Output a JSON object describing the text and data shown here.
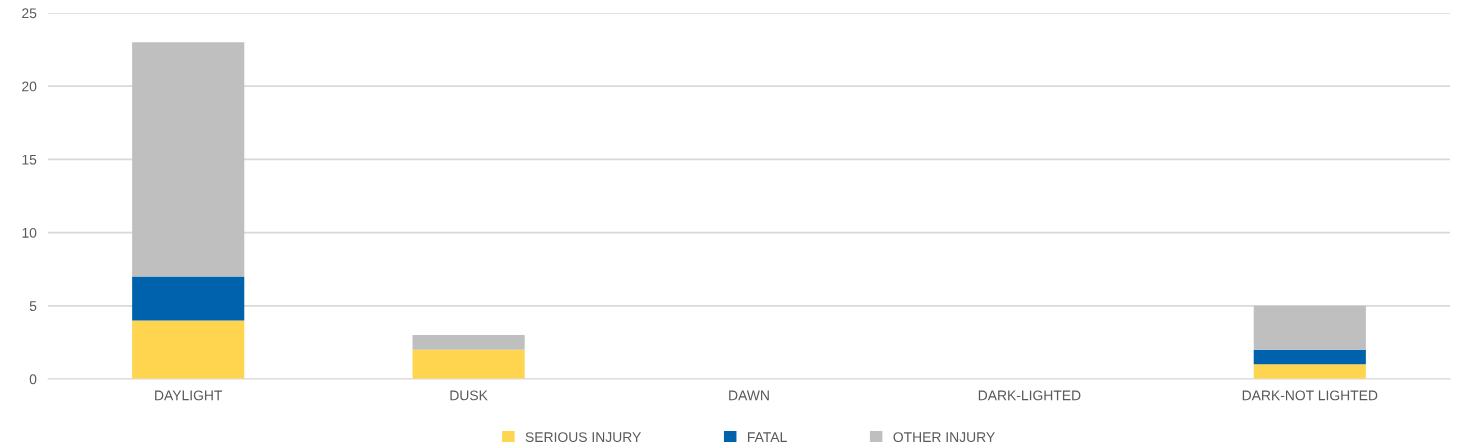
{
  "chart_data": {
    "type": "bar",
    "stacked": true,
    "categories": [
      "DAYLIGHT",
      "DUSK",
      "DAWN",
      "DARK-LIGHTED",
      "DARK-NOT LIGHTED"
    ],
    "series": [
      {
        "name": "SERIOUS INJURY",
        "color": "#ffd54f",
        "values": [
          4,
          2,
          0,
          0,
          1
        ]
      },
      {
        "name": "FATAL",
        "color": "#0062ad",
        "values": [
          3,
          0,
          0,
          0,
          1
        ]
      },
      {
        "name": "OTHER INJURY",
        "color": "#bfbfbf",
        "values": [
          16,
          1,
          0,
          0,
          3
        ]
      }
    ],
    "ylim": [
      0,
      25
    ],
    "yticks": [
      0,
      5,
      10,
      15,
      20,
      25
    ],
    "grid": "y",
    "legend": "bottom"
  }
}
